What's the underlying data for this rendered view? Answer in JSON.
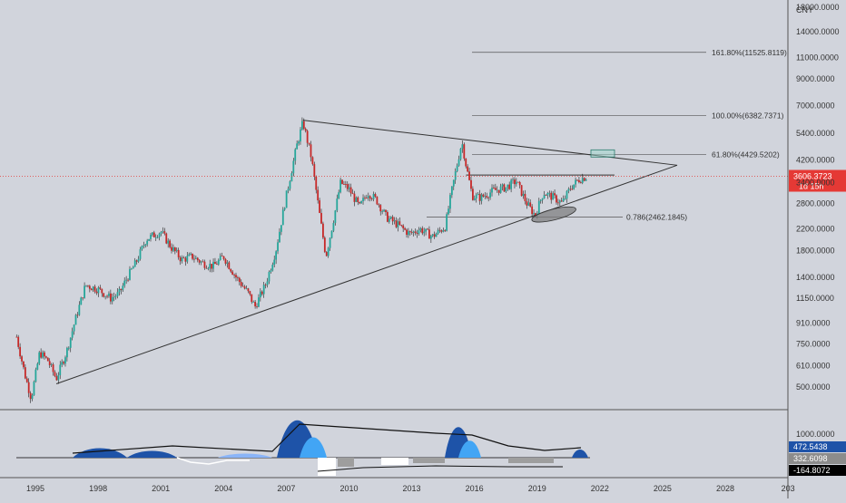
{
  "chart_data": {
    "type": "candlestick",
    "currency": "CNY",
    "y_scale": "log",
    "y_axis_ticks": [
      "18000.0000",
      "14000.0000",
      "11000.0000",
      "9000.0000",
      "7000.0000",
      "5400.0000",
      "4200.0000",
      "3400.0000",
      "2800.0000",
      "2200.0000",
      "1800.0000",
      "1400.0000",
      "1150.0000",
      "910.0000",
      "750.0000",
      "610.0000",
      "500.0000"
    ],
    "x_axis_ticks": [
      "1995",
      "1998",
      "2001",
      "2004",
      "2007",
      "2010",
      "2013",
      "2016",
      "2019",
      "2022",
      "2025",
      "2028",
      "203"
    ],
    "current_price": {
      "value": "3606.3723",
      "countdown": "1d 15h",
      "color": "#e53935"
    },
    "fib_levels": [
      {
        "label": "161.80%(11525.8119)",
        "value": 11525.8119
      },
      {
        "label": "100.00%(6382.7371)",
        "value": 6382.7371
      },
      {
        "label": "61.80%(4429.5202)",
        "value": 4429.5202
      },
      {
        "label": "0.786(2462.1845)",
        "value": 2462.1845
      }
    ],
    "price_series": [
      {
        "year": 1994.1,
        "close": 800
      },
      {
        "year": 1994.5,
        "close": 560
      },
      {
        "year": 1994.8,
        "close": 450
      },
      {
        "year": 1995.2,
        "close": 690
      },
      {
        "year": 1995.6,
        "close": 640
      },
      {
        "year": 1996.0,
        "close": 540
      },
      {
        "year": 1996.5,
        "close": 700
      },
      {
        "year": 1997.0,
        "close": 1000
      },
      {
        "year": 1997.4,
        "close": 1300
      },
      {
        "year": 1998.0,
        "close": 1250
      },
      {
        "year": 1998.6,
        "close": 1150
      },
      {
        "year": 1999.0,
        "close": 1200
      },
      {
        "year": 1999.4,
        "close": 1400
      },
      {
        "year": 1999.8,
        "close": 1600
      },
      {
        "year": 2000.3,
        "close": 2000
      },
      {
        "year": 2001.0,
        "close": 2150
      },
      {
        "year": 2001.5,
        "close": 1850
      },
      {
        "year": 2002.0,
        "close": 1650
      },
      {
        "year": 2002.5,
        "close": 1700
      },
      {
        "year": 2003.0,
        "close": 1600
      },
      {
        "year": 2003.5,
        "close": 1550
      },
      {
        "year": 2004.0,
        "close": 1700
      },
      {
        "year": 2004.6,
        "close": 1400
      },
      {
        "year": 2005.2,
        "close": 1200
      },
      {
        "year": 2005.5,
        "close": 1060
      },
      {
        "year": 2006.0,
        "close": 1300
      },
      {
        "year": 2006.5,
        "close": 1800
      },
      {
        "year": 2007.0,
        "close": 3000
      },
      {
        "year": 2007.5,
        "close": 4800
      },
      {
        "year": 2007.8,
        "close": 6000
      },
      {
        "year": 2008.2,
        "close": 4300
      },
      {
        "year": 2008.6,
        "close": 2500
      },
      {
        "year": 2008.9,
        "close": 1700
      },
      {
        "year": 2009.3,
        "close": 2500
      },
      {
        "year": 2009.6,
        "close": 3400
      },
      {
        "year": 2010.0,
        "close": 3200
      },
      {
        "year": 2010.5,
        "close": 2700
      },
      {
        "year": 2010.9,
        "close": 3100
      },
      {
        "year": 2011.3,
        "close": 2900
      },
      {
        "year": 2011.8,
        "close": 2450
      },
      {
        "year": 2012.3,
        "close": 2300
      },
      {
        "year": 2012.9,
        "close": 2100
      },
      {
        "year": 2013.4,
        "close": 2200
      },
      {
        "year": 2014.0,
        "close": 2050
      },
      {
        "year": 2014.6,
        "close": 2250
      },
      {
        "year": 2014.9,
        "close": 3100
      },
      {
        "year": 2015.4,
        "close": 5000
      },
      {
        "year": 2015.6,
        "close": 4000
      },
      {
        "year": 2015.9,
        "close": 3000
      },
      {
        "year": 2016.3,
        "close": 2950
      },
      {
        "year": 2016.9,
        "close": 3150
      },
      {
        "year": 2017.5,
        "close": 3250
      },
      {
        "year": 2018.0,
        "close": 3450
      },
      {
        "year": 2018.5,
        "close": 2800
      },
      {
        "year": 2018.9,
        "close": 2500
      },
      {
        "year": 2019.3,
        "close": 3100
      },
      {
        "year": 2019.8,
        "close": 2950
      },
      {
        "year": 2020.2,
        "close": 2800
      },
      {
        "year": 2020.6,
        "close": 3250
      },
      {
        "year": 2021.0,
        "close": 3500
      },
      {
        "year": 2021.4,
        "close": 3606
      }
    ],
    "trendlines": [
      {
        "from": {
          "year": 1996.0,
          "price": 515
        },
        "to": {
          "year": 2025.7,
          "price": 4000
        }
      },
      {
        "from": {
          "year": 2007.8,
          "price": 6100
        },
        "to": {
          "year": 2025.7,
          "price": 4000
        }
      },
      {
        "from": {
          "year": 2015.6,
          "price": 3650
        },
        "to": {
          "year": 2022.7,
          "price": 3650
        }
      }
    ],
    "oscillator": {
      "y_axis_ticks": [
        "1000.0000"
      ],
      "labels": [
        {
          "value": "472.5438",
          "color": "#1e53a8"
        },
        {
          "value": "332.6098",
          "color": "#8c8c8c"
        },
        {
          "value": "-164.8072",
          "color": "#000000"
        }
      ]
    }
  }
}
